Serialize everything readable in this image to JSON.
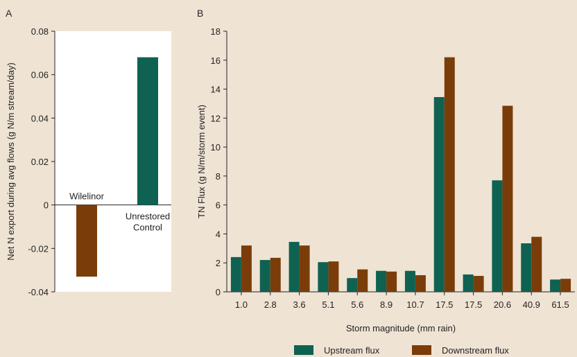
{
  "panels": {
    "a": "A",
    "b": "B"
  },
  "legend": {
    "upstream": "Upstream flux",
    "downstream": "Downstream flux"
  },
  "colors": {
    "upstream": "#0f6251",
    "downstream": "#7a3d0a",
    "background": "#efe3d4",
    "panel_a_bg": "#ffffff"
  },
  "chart_data": [
    {
      "type": "bar",
      "panel": "A",
      "categories": [
        "Wilelinor",
        "Unrestored Control"
      ],
      "category_lines": [
        [
          "Wilelinor"
        ],
        [
          "Unrestored",
          "Control"
        ]
      ],
      "values": [
        -0.033,
        0.068
      ],
      "colors": [
        "#7a3d0a",
        "#0f6251"
      ],
      "ylabel": "Net N export during avg flows (g N/m stream/day)",
      "xlabel": "",
      "ylim": [
        -0.04,
        0.08
      ],
      "yticks": [
        "0.08",
        "0.06",
        "0.04",
        "0.02",
        "0",
        "-0.02",
        "-0.04"
      ],
      "ytick_values": [
        0.08,
        0.06,
        0.04,
        0.02,
        0,
        -0.02,
        -0.04
      ]
    },
    {
      "type": "bar",
      "panel": "B",
      "categories": [
        "1.0",
        "2.8",
        "3.6",
        "5.1",
        "5.6",
        "8.9",
        "10.7",
        "17.5",
        "17.5",
        "20.6",
        "40.9",
        "61.5"
      ],
      "series": [
        {
          "name": "Upstream flux",
          "values": [
            2.4,
            2.2,
            3.45,
            2.05,
            0.95,
            1.45,
            1.45,
            13.45,
            1.2,
            7.7,
            3.35,
            0.85
          ]
        },
        {
          "name": "Downstream flux",
          "values": [
            3.2,
            2.35,
            3.2,
            2.1,
            1.55,
            1.4,
            1.15,
            16.2,
            1.1,
            12.85,
            3.8,
            0.9
          ]
        }
      ],
      "xlabel": "Storm magnitude (mm rain)",
      "ylabel": "TN Flux (g N/m/storm event)",
      "ylim": [
        0,
        18
      ],
      "yticks": [
        "0",
        "2",
        "4",
        "6",
        "8",
        "10",
        "12",
        "14",
        "16",
        "18"
      ]
    }
  ]
}
